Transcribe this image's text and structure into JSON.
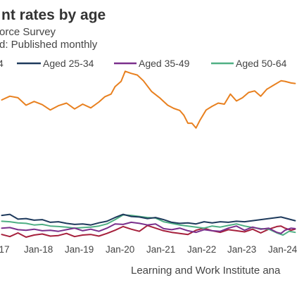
{
  "chart_data": {
    "type": "line",
    "title": "nt rates by age",
    "subtitle_lines": [
      "orce Survey",
      "d: Published monthly"
    ],
    "source": "Learning and Work Institute ana",
    "legend_position": "top",
    "grid": false,
    "x_ticks": [
      "-17",
      "Jan-18",
      "Jan-19",
      "Jan-20",
      "Jan-21",
      "Jan-22",
      "Jan-23",
      "Jan-24"
    ],
    "x_start": 2017.6,
    "x_end": 2024.85,
    "ylim": [
      0,
      50
    ],
    "series": [
      {
        "legend_label": "4",
        "color": "#e8801f",
        "points": [
          [
            2017.6,
            34.8
          ],
          [
            2017.8,
            35.5
          ],
          [
            2018.0,
            35.2
          ],
          [
            2018.2,
            33.8
          ],
          [
            2018.4,
            34.5
          ],
          [
            2018.6,
            33.9
          ],
          [
            2018.8,
            32.9
          ],
          [
            2019.0,
            33.7
          ],
          [
            2019.2,
            34.2
          ],
          [
            2019.4,
            33.1
          ],
          [
            2019.6,
            34.0
          ],
          [
            2019.8,
            33.3
          ],
          [
            2020.0,
            34.4
          ],
          [
            2020.15,
            35.4
          ],
          [
            2020.3,
            35.9
          ],
          [
            2020.4,
            37.3
          ],
          [
            2020.55,
            38.3
          ],
          [
            2020.65,
            40.2
          ],
          [
            2020.8,
            39.8
          ],
          [
            2020.95,
            39.5
          ],
          [
            2021.1,
            38.4
          ],
          [
            2021.3,
            36.4
          ],
          [
            2021.5,
            35.2
          ],
          [
            2021.7,
            33.8
          ],
          [
            2021.85,
            33.2
          ],
          [
            2022.0,
            32.8
          ],
          [
            2022.1,
            31.9
          ],
          [
            2022.2,
            30.4
          ],
          [
            2022.3,
            30.4
          ],
          [
            2022.4,
            29.5
          ],
          [
            2022.5,
            31.0
          ],
          [
            2022.65,
            32.9
          ],
          [
            2022.8,
            33.6
          ],
          [
            2022.95,
            34.2
          ],
          [
            2023.1,
            34.0
          ],
          [
            2023.25,
            35.9
          ],
          [
            2023.4,
            34.6
          ],
          [
            2023.55,
            35.2
          ],
          [
            2023.7,
            36.2
          ],
          [
            2023.85,
            36.5
          ],
          [
            2024.0,
            35.5
          ],
          [
            2024.15,
            36.8
          ],
          [
            2024.3,
            37.5
          ],
          [
            2024.5,
            38.4
          ],
          [
            2024.6,
            38.3
          ],
          [
            2024.75,
            38.0
          ],
          [
            2024.85,
            37.9
          ]
        ]
      },
      {
        "legend_label": "Aged 25-34",
        "color": "#1e3a5c",
        "points": [
          [
            2017.6,
            13.0
          ],
          [
            2017.8,
            13.2
          ],
          [
            2018.0,
            12.3
          ],
          [
            2018.2,
            12.4
          ],
          [
            2018.4,
            12.1
          ],
          [
            2018.6,
            12.2
          ],
          [
            2018.8,
            11.7
          ],
          [
            2019.0,
            11.8
          ],
          [
            2019.2,
            11.5
          ],
          [
            2019.4,
            11.3
          ],
          [
            2019.6,
            11.4
          ],
          [
            2019.8,
            11.2
          ],
          [
            2020.0,
            11.6
          ],
          [
            2020.2,
            11.9
          ],
          [
            2020.4,
            12.6
          ],
          [
            2020.6,
            13.2
          ],
          [
            2020.8,
            12.8
          ],
          [
            2021.0,
            12.7
          ],
          [
            2021.2,
            12.4
          ],
          [
            2021.4,
            12.6
          ],
          [
            2021.6,
            12.2
          ],
          [
            2021.8,
            11.7
          ],
          [
            2022.0,
            11.5
          ],
          [
            2022.2,
            11.6
          ],
          [
            2022.4,
            11.4
          ],
          [
            2022.6,
            11.8
          ],
          [
            2022.8,
            11.6
          ],
          [
            2023.0,
            11.8
          ],
          [
            2023.2,
            11.7
          ],
          [
            2023.4,
            11.9
          ],
          [
            2023.6,
            11.8
          ],
          [
            2023.8,
            12.0
          ],
          [
            2024.0,
            12.2
          ],
          [
            2024.2,
            12.4
          ],
          [
            2024.4,
            12.6
          ],
          [
            2024.5,
            12.7
          ],
          [
            2024.7,
            12.3
          ],
          [
            2024.85,
            12.0
          ]
        ]
      },
      {
        "legend_label": "Aged 35-49",
        "color": "#7a2f8c",
        "points": [
          [
            2017.6,
            10.6
          ],
          [
            2017.8,
            10.7
          ],
          [
            2018.0,
            10.3
          ],
          [
            2018.2,
            10.2
          ],
          [
            2018.4,
            10.4
          ],
          [
            2018.6,
            10.1
          ],
          [
            2018.8,
            10.2
          ],
          [
            2019.0,
            10.0
          ],
          [
            2019.2,
            10.3
          ],
          [
            2019.4,
            10.6
          ],
          [
            2019.6,
            10.1
          ],
          [
            2019.8,
            10.4
          ],
          [
            2020.0,
            10.0
          ],
          [
            2020.2,
            10.6
          ],
          [
            2020.4,
            11.4
          ],
          [
            2020.6,
            11.3
          ],
          [
            2020.8,
            11.7
          ],
          [
            2021.0,
            11.5
          ],
          [
            2021.2,
            11.2
          ],
          [
            2021.4,
            11.4
          ],
          [
            2021.6,
            10.5
          ],
          [
            2021.8,
            10.3
          ],
          [
            2022.0,
            10.6
          ],
          [
            2022.2,
            10.1
          ],
          [
            2022.4,
            9.8
          ],
          [
            2022.6,
            10.3
          ],
          [
            2022.8,
            10.1
          ],
          [
            2023.0,
            10.0
          ],
          [
            2023.2,
            10.6
          ],
          [
            2023.4,
            11.0
          ],
          [
            2023.6,
            10.2
          ],
          [
            2023.8,
            10.8
          ],
          [
            2024.0,
            10.4
          ],
          [
            2024.2,
            10.6
          ],
          [
            2024.4,
            9.8
          ],
          [
            2024.5,
            9.6
          ],
          [
            2024.6,
            10.2
          ],
          [
            2024.75,
            10.6
          ],
          [
            2024.85,
            10.5
          ]
        ]
      },
      {
        "legend_label": "Aged 50-64",
        "color": "#4faf84",
        "points": [
          [
            2017.6,
            11.9
          ],
          [
            2017.8,
            11.8
          ],
          [
            2018.0,
            11.6
          ],
          [
            2018.2,
            11.5
          ],
          [
            2018.4,
            11.2
          ],
          [
            2018.6,
            11.3
          ],
          [
            2018.8,
            11.0
          ],
          [
            2019.0,
            10.9
          ],
          [
            2019.2,
            10.8
          ],
          [
            2019.4,
            10.6
          ],
          [
            2019.6,
            10.7
          ],
          [
            2019.8,
            10.8
          ],
          [
            2020.0,
            11.0
          ],
          [
            2020.2,
            11.4
          ],
          [
            2020.4,
            12.2
          ],
          [
            2020.6,
            13.1
          ],
          [
            2020.8,
            13.0
          ],
          [
            2021.0,
            12.8
          ],
          [
            2021.2,
            12.6
          ],
          [
            2021.4,
            12.5
          ],
          [
            2021.6,
            11.8
          ],
          [
            2021.8,
            11.5
          ],
          [
            2022.0,
            11.2
          ],
          [
            2022.2,
            11.0
          ],
          [
            2022.4,
            10.8
          ],
          [
            2022.6,
            10.6
          ],
          [
            2022.8,
            11.0
          ],
          [
            2023.0,
            10.8
          ],
          [
            2023.2,
            11.1
          ],
          [
            2023.4,
            11.4
          ],
          [
            2023.6,
            11.0
          ],
          [
            2023.8,
            10.7
          ],
          [
            2024.0,
            10.5
          ],
          [
            2024.2,
            10.4
          ],
          [
            2024.4,
            9.7
          ],
          [
            2024.55,
            9.3
          ],
          [
            2024.7,
            10.0
          ],
          [
            2024.85,
            9.8
          ]
        ]
      },
      {
        "legend_label": null,
        "color": "#a6203c",
        "points": [
          [
            2017.6,
            9.4
          ],
          [
            2017.8,
            9.0
          ],
          [
            2018.0,
            9.7
          ],
          [
            2018.2,
            8.9
          ],
          [
            2018.4,
            9.3
          ],
          [
            2018.6,
            9.5
          ],
          [
            2018.8,
            9.1
          ],
          [
            2019.0,
            9.2
          ],
          [
            2019.2,
            9.6
          ],
          [
            2019.4,
            9.0
          ],
          [
            2019.6,
            9.3
          ],
          [
            2019.8,
            9.4
          ],
          [
            2020.0,
            9.1
          ],
          [
            2020.2,
            9.6
          ],
          [
            2020.4,
            10.2
          ],
          [
            2020.6,
            10.9
          ],
          [
            2020.8,
            10.4
          ],
          [
            2021.0,
            10.0
          ],
          [
            2021.2,
            11.1
          ],
          [
            2021.4,
            10.6
          ],
          [
            2021.6,
            10.1
          ],
          [
            2021.8,
            9.8
          ],
          [
            2022.0,
            9.6
          ],
          [
            2022.2,
            9.4
          ],
          [
            2022.4,
            10.2
          ],
          [
            2022.6,
            10.6
          ],
          [
            2022.8,
            10.1
          ],
          [
            2023.0,
            9.8
          ],
          [
            2023.2,
            10.3
          ],
          [
            2023.4,
            10.1
          ],
          [
            2023.6,
            9.9
          ],
          [
            2023.8,
            10.4
          ],
          [
            2024.0,
            9.7
          ],
          [
            2024.2,
            10.4
          ],
          [
            2024.4,
            10.9
          ],
          [
            2024.5,
            11.0
          ],
          [
            2024.6,
            10.6
          ],
          [
            2024.75,
            10.2
          ],
          [
            2024.85,
            10.4
          ]
        ]
      }
    ]
  }
}
